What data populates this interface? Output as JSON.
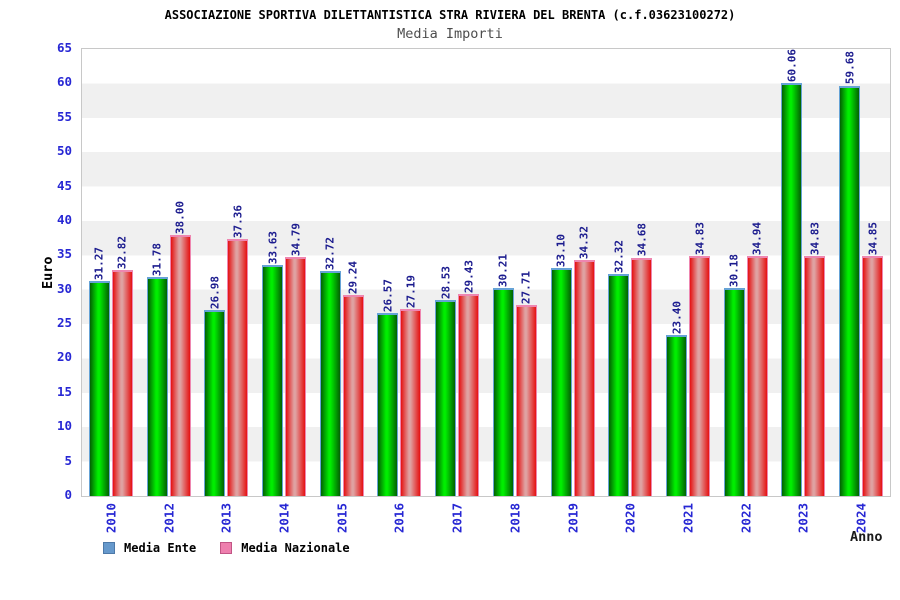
{
  "header": {
    "title": "ASSOCIAZIONE SPORTIVA DILETTANTISTICA STRA RIVIERA DEL BRENTA (c.f.03623100272)",
    "subtitle": "Media Importi"
  },
  "axes": {
    "y_label": "Euro",
    "x_label": "Anno",
    "y_ticks": [
      0,
      5,
      10,
      15,
      20,
      25,
      30,
      35,
      40,
      45,
      50,
      55,
      60,
      65
    ]
  },
  "legend": {
    "items": [
      {
        "label": "Media Ente",
        "swatch_color": "#6699cc",
        "swatch_border": "#4d79a8"
      },
      {
        "label": "Media Nazionale",
        "swatch_color": "#ee7fae",
        "swatch_border": "#c25585"
      }
    ]
  },
  "colors": {
    "plot_border": "#c8c8c8",
    "band_light": "#ffffff",
    "band_dark": "#f0f0f0",
    "axis_tick_text": "#2727d4",
    "value_label_text": "#1b1b8e",
    "subtitle_text": "#4d4d4d"
  },
  "chart_data": {
    "type": "bar",
    "title": "Media Importi",
    "xlabel": "Anno",
    "ylabel": "Euro",
    "ylim": [
      0,
      65
    ],
    "grid": "horizontal-bands",
    "legend_position": "bottom",
    "value_labels": "rotated-90-above-bars",
    "categories": [
      "2010",
      "2012",
      "2013",
      "2014",
      "2015",
      "2016",
      "2017",
      "2018",
      "2019",
      "2020",
      "2021",
      "2022",
      "2023",
      "2024"
    ],
    "series": [
      {
        "name": "Media Ente",
        "values": [
          31.27,
          31.78,
          26.98,
          33.63,
          32.72,
          26.57,
          28.53,
          30.21,
          33.1,
          32.32,
          23.4,
          30.18,
          60.06,
          59.68
        ],
        "bar_edge_color": "#036103",
        "bar_mid_color": "#00ee00",
        "cap_color": "#66a3d6"
      },
      {
        "name": "Media Nazionale",
        "values": [
          32.82,
          38.0,
          37.36,
          34.79,
          29.24,
          27.19,
          29.43,
          27.71,
          34.32,
          34.68,
          34.83,
          34.94,
          34.83,
          34.85
        ],
        "bar_edge_color": "#e51111",
        "bar_mid_color": "#dfa2a2",
        "cap_color": "#ee86b0"
      }
    ]
  }
}
